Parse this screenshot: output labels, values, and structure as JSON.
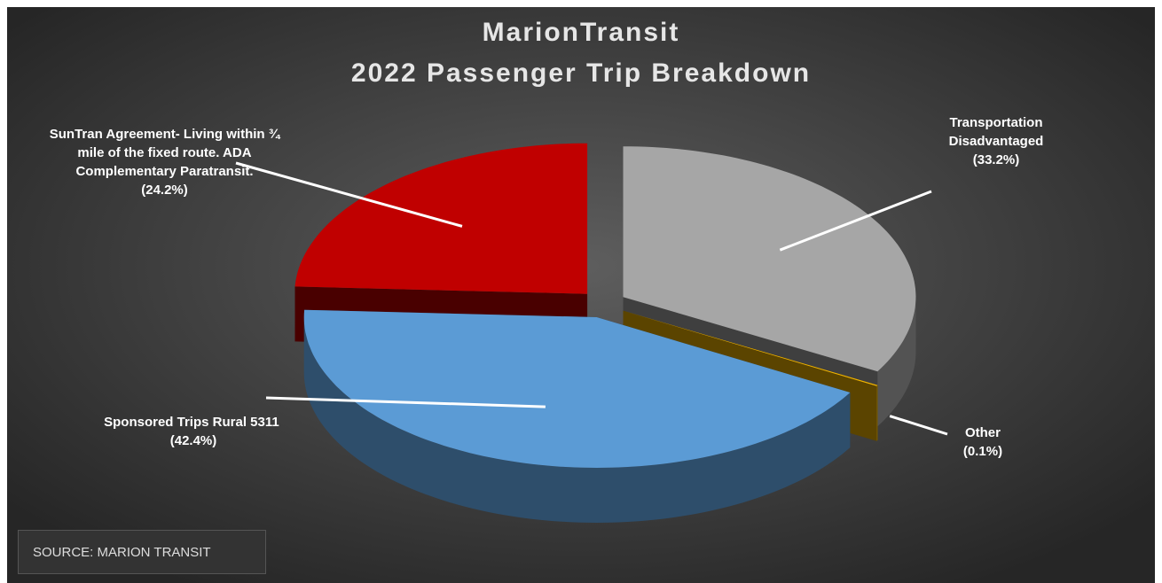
{
  "chart_data": {
    "type": "pie",
    "title": "MarionTransit",
    "subtitle": "2022 Passenger Trip Breakdown",
    "source": "SOURCE: MARION TRANSIT",
    "categories": [
      "Transportation Disadvantaged",
      "Other",
      "Sponsored Trips Rural 5311",
      "SunTran Agreement- Living within ¾ mile of the fixed route. ADA Complementary Paratransit."
    ],
    "values": [
      33.2,
      0.1,
      42.4,
      24.2
    ],
    "value_labels": [
      "(33.2%)",
      "(0.1%)",
      "(42.4%)",
      "(24.2%)"
    ],
    "colors": [
      "#a6a6a6",
      "#f0b400",
      "#5b9bd5",
      "#c00000"
    ]
  }
}
